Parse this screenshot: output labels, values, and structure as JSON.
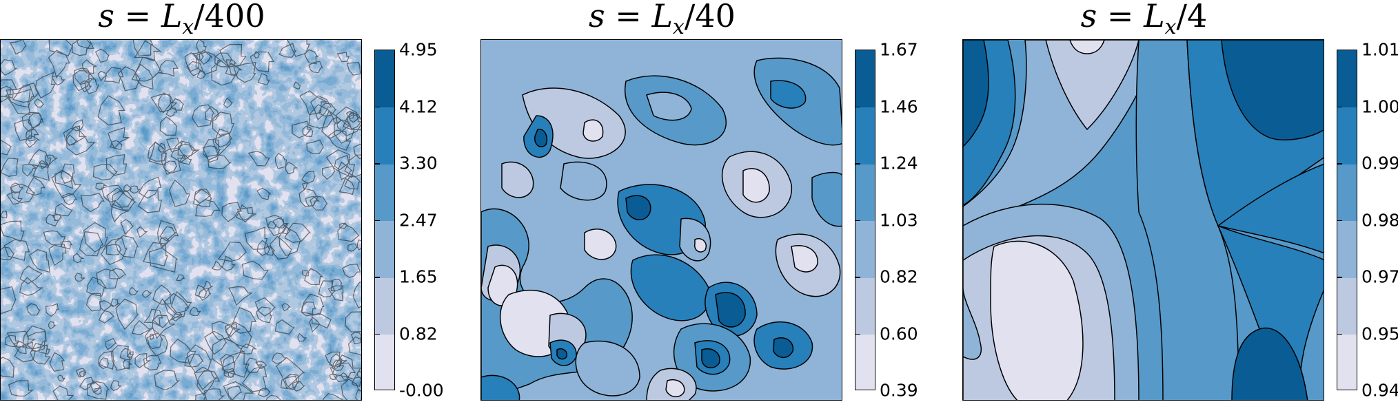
{
  "colors": [
    "#e2e1ef",
    "#bcc9e1",
    "#8fb4d8",
    "#5799c8",
    "#2780ba",
    "#0a5d94"
  ],
  "chart_data": [
    {
      "type": "heatmap",
      "title": "s = L_x/400",
      "title_parts": {
        "lhs": "s",
        "eq": " = ",
        "L": "L",
        "sub": "x",
        "denom": "/400"
      },
      "colorbar_ticks": [
        "-0.00",
        "0.82",
        "1.65",
        "2.47",
        "3.30",
        "4.12",
        "4.95"
      ],
      "levels": [
        0.0,
        0.82,
        1.65,
        2.47,
        3.3,
        4.12,
        4.95
      ],
      "contour_lines": true,
      "pattern": "fine-scale random field"
    },
    {
      "type": "heatmap",
      "title": "s = L_x/40",
      "title_parts": {
        "lhs": "s",
        "eq": " = ",
        "L": "L",
        "sub": "x",
        "denom": "/40"
      },
      "colorbar_ticks": [
        "0.39",
        "0.60",
        "0.82",
        "1.03",
        "1.24",
        "1.46",
        "1.67"
      ],
      "levels": [
        0.39,
        0.6,
        0.82,
        1.03,
        1.24,
        1.46,
        1.67
      ],
      "contour_lines": true,
      "pattern": "medium-scale random field"
    },
    {
      "type": "heatmap",
      "title": "s = L_x/4",
      "title_parts": {
        "lhs": "s",
        "eq": " = ",
        "L": "L",
        "sub": "x",
        "denom": "/4"
      },
      "colorbar_ticks": [
        "0.94",
        "0.95",
        "0.97",
        "0.98",
        "0.99",
        "1.00",
        "1.01"
      ],
      "levels": [
        0.94,
        0.95,
        0.97,
        0.98,
        0.99,
        1.0,
        1.01
      ],
      "contour_lines": true,
      "pattern": "large-scale smooth field"
    }
  ]
}
